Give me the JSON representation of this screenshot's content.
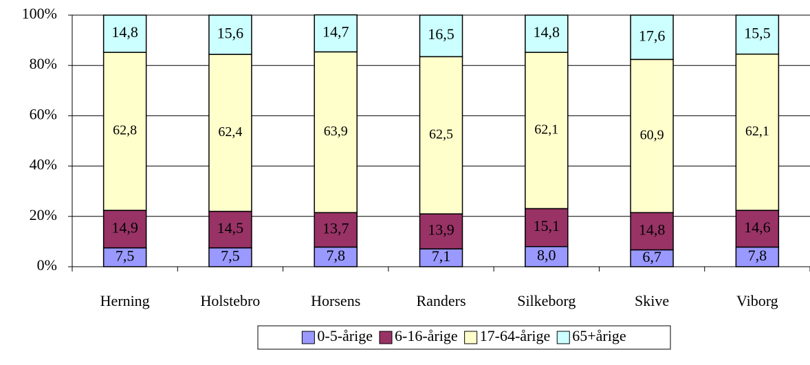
{
  "chart_data": {
    "type": "stacked_bar",
    "categories": [
      "Herning",
      "Holstebro",
      "Horsens",
      "Randers",
      "Silkeborg",
      "Skive",
      "Viborg"
    ],
    "series": [
      {
        "name": "0-5-årige",
        "color": "#9999ff",
        "values": [
          7.5,
          7.5,
          7.8,
          7.1,
          8.0,
          6.7,
          7.8
        ],
        "value_labels": [
          "7,5",
          "7,5",
          "7,8",
          "7,1",
          "8,0",
          "6,7",
          "7,8"
        ]
      },
      {
        "name": "6-16-årige",
        "color": "#993366",
        "values": [
          14.9,
          14.5,
          13.7,
          13.9,
          15.1,
          14.8,
          14.6
        ],
        "value_labels": [
          "14,9",
          "14,5",
          "13,7",
          "13,9",
          "15,1",
          "14,8",
          "14,6"
        ]
      },
      {
        "name": "17-64-årige",
        "color": "#ffffcc",
        "values": [
          62.8,
          62.4,
          63.9,
          62.5,
          62.1,
          60.9,
          62.1
        ],
        "value_labels": [
          "62,8",
          "62,4",
          "63,9",
          "62,5",
          "62,1",
          "60,9",
          "62,1"
        ]
      },
      {
        "name": "65+årige",
        "color": "#ccffff",
        "values": [
          14.8,
          15.6,
          14.7,
          16.5,
          14.8,
          17.6,
          15.5
        ],
        "value_labels": [
          "14,8",
          "15,6",
          "14,7",
          "16,5",
          "14,8",
          "17,6",
          "15,5"
        ]
      }
    ],
    "ylim": [
      0,
      100
    ],
    "yticks": [
      {
        "value": 0,
        "label": "0%"
      },
      {
        "value": 20,
        "label": "20%"
      },
      {
        "value": 40,
        "label": "40%"
      },
      {
        "value": 60,
        "label": "60%"
      },
      {
        "value": 80,
        "label": "80%"
      },
      {
        "value": 100,
        "label": "100%"
      }
    ],
    "grid": true,
    "legend": "bottom"
  }
}
